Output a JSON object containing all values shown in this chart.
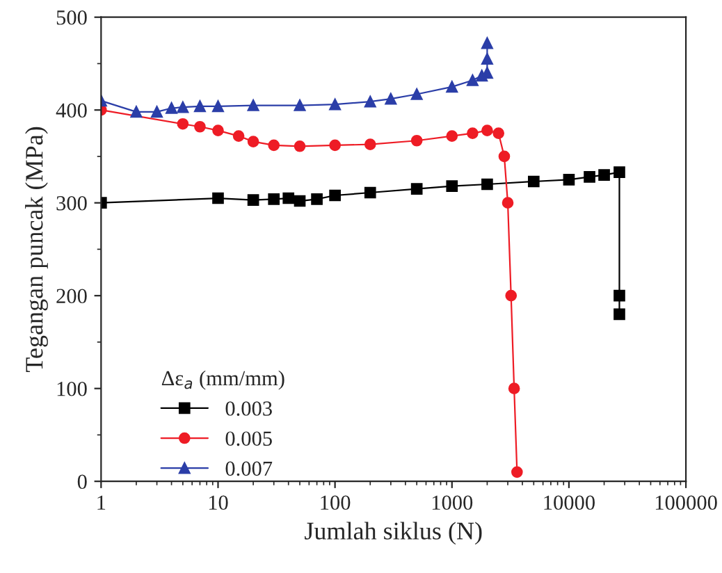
{
  "chart_data": {
    "type": "line",
    "xlabel": "Jumlah siklus (N)",
    "ylabel": "Tegangan puncak (MPa)",
    "legend_title": "Δε$_{a}$ (mm/mm)",
    "log": "x",
    "xlim": [
      1,
      100000
    ],
    "xticks": [
      1,
      10,
      100,
      1000,
      10000,
      100000
    ],
    "ylim": [
      0,
      500
    ],
    "yticks": [
      0,
      100,
      200,
      300,
      400,
      500
    ],
    "grid": false,
    "legend": "bottom left",
    "series": [
      {
        "name": "0.003",
        "color": "#000000",
        "marker": "square",
        "x": [
          1,
          10,
          20,
          30,
          40,
          50,
          70,
          100,
          200,
          500,
          1000,
          2000,
          5000,
          10000,
          15000,
          20000,
          27000,
          27000,
          27000
        ],
        "values": [
          300,
          305,
          303,
          304,
          305,
          302,
          304,
          308,
          311,
          315,
          318,
          320,
          323,
          325,
          328,
          330,
          333,
          200,
          180
        ]
      },
      {
        "name": "0.005",
        "color": "#ee1c25",
        "marker": "circle",
        "x": [
          1,
          5,
          7,
          10,
          15,
          20,
          30,
          50,
          100,
          200,
          500,
          1000,
          1500,
          2000,
          2500,
          2800,
          3000,
          3200,
          3400,
          3600
        ],
        "values": [
          400,
          385,
          382,
          378,
          372,
          366,
          362,
          361,
          362,
          363,
          367,
          372,
          375,
          378,
          375,
          350,
          300,
          200,
          100,
          10
        ]
      },
      {
        "name": "0.007",
        "color": "#2b3ea8",
        "marker": "triangle",
        "x": [
          1,
          2,
          3,
          4,
          5,
          7,
          10,
          20,
          50,
          100,
          200,
          300,
          500,
          1000,
          1500,
          1800,
          2000,
          2000,
          2000
        ],
        "values": [
          410,
          398,
          398,
          402,
          403,
          404,
          404,
          405,
          405,
          406,
          409,
          412,
          417,
          425,
          432,
          437,
          440,
          455,
          472
        ]
      }
    ]
  }
}
